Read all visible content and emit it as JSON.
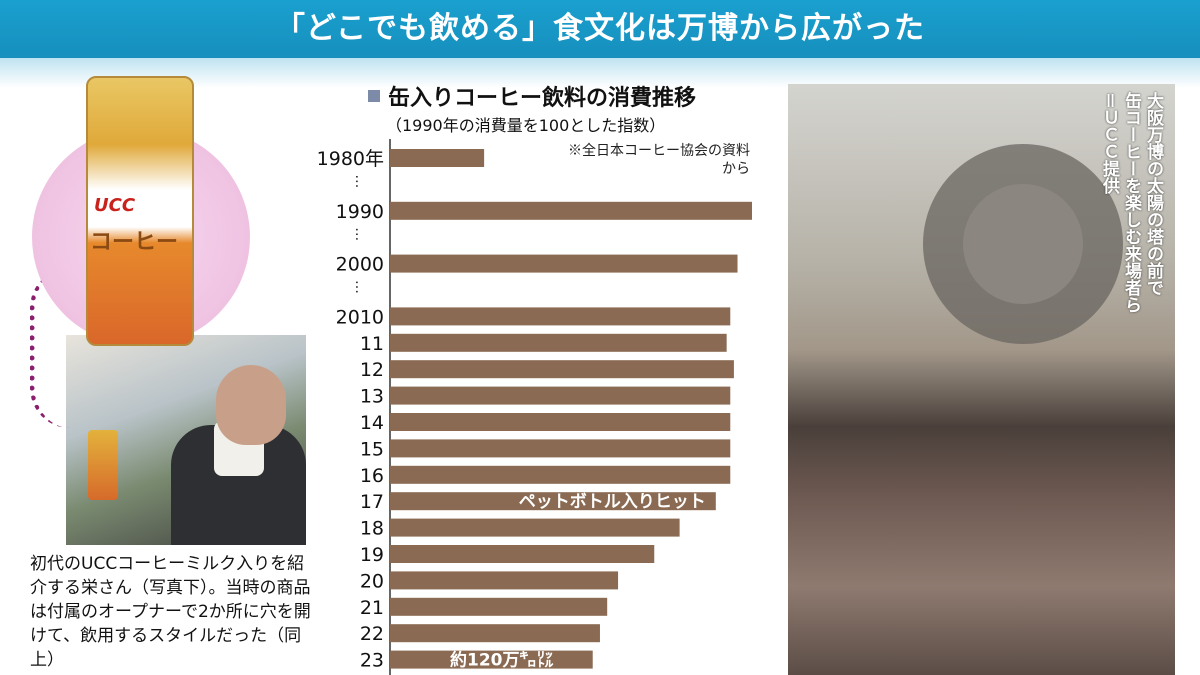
{
  "header": {
    "title": "「どこでも飲める」食文化は万博から広がった"
  },
  "chart_data": {
    "type": "bar",
    "orientation": "horizontal",
    "title": "缶入りコーヒー飲料の消費推移",
    "subtitle": "（1990年の消費量を100とした指数）",
    "source": "※全日本コーヒー協会の資料から",
    "categories": [
      "1980年",
      "1990",
      "2000",
      "2010",
      "11",
      "12",
      "13",
      "14",
      "15",
      "16",
      "17",
      "18",
      "19",
      "20",
      "21",
      "22",
      "23"
    ],
    "values": [
      26,
      100,
      96,
      94,
      93,
      95,
      94,
      94,
      94,
      94,
      90,
      80,
      73,
      63,
      60,
      58,
      56
    ],
    "xlim": [
      0,
      100
    ],
    "xticks": [
      0,
      20,
      40,
      60,
      80,
      100
    ],
    "bar_color": "#8a6a52",
    "annotations": [
      {
        "category": "17",
        "text": "ペットボトル入りヒット"
      },
      {
        "category": "23",
        "text": "約120万㌔㍑"
      }
    ],
    "axis_break_marks": "…"
  },
  "left_caption": "初代のUCCコーヒーミルク入りを紹介する栄さん（写真下）。当時の商品は付属のオープナーで2か所に穴を開けて、飲用するスタイルだった（同上）",
  "can_labels": {
    "brand": "UCC",
    "name": "コーヒー"
  },
  "right_caption": {
    "line1": "大阪万博の太陽の塔の前で",
    "line2": "缶コーヒーを楽しむ来場者ら",
    "line3": "＝ＵＣＣ提供"
  }
}
